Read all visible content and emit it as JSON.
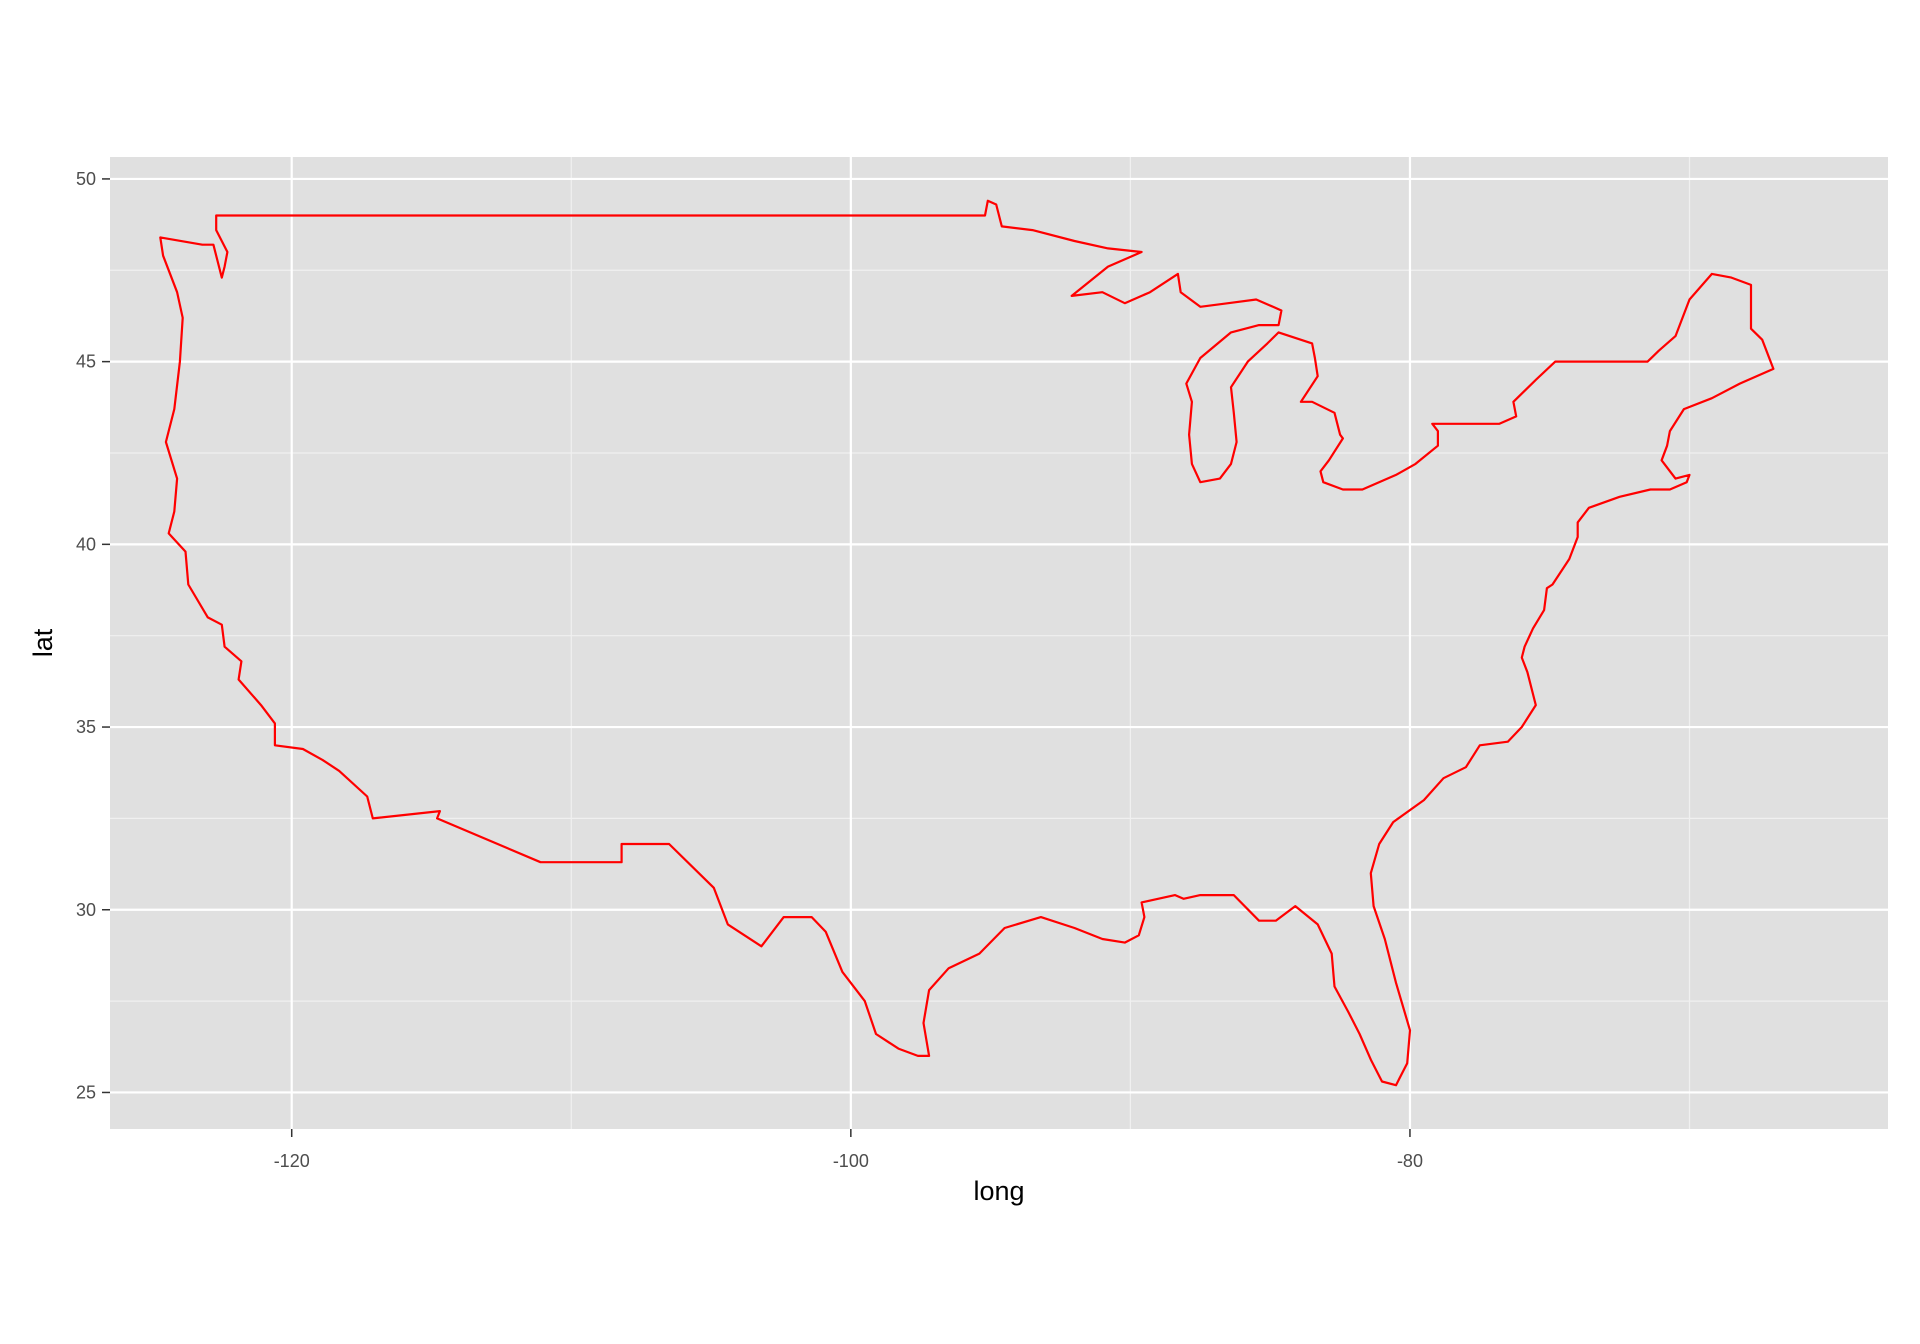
{
  "chart_data": {
    "type": "line",
    "title": "",
    "xlabel": "long",
    "ylabel": "lat",
    "xlim": [
      -126.5,
      -62.9
    ],
    "ylim": [
      24.0,
      50.6
    ],
    "x_ticks": [
      -120,
      -100,
      -80
    ],
    "y_ticks": [
      25,
      30,
      35,
      40,
      45,
      50
    ],
    "x_tick_labels": [
      "-120",
      "-100",
      "-80"
    ],
    "y_tick_labels": [
      "25",
      "30",
      "35",
      "40",
      "45",
      "50"
    ],
    "grid": true,
    "legend": "none",
    "colors": {
      "panel": "#e0e0e0",
      "grid_major": "#ffffff",
      "grid_minor": "#f0f0f0",
      "line": "#ff0000"
    },
    "series": [
      {
        "points": [
          [
            -122.7,
            49.0
          ],
          [
            -120.0,
            49.0
          ],
          [
            -110.0,
            49.0
          ],
          [
            -100.0,
            49.0
          ],
          [
            -95.2,
            49.0
          ],
          [
            -95.1,
            49.4
          ],
          [
            -94.8,
            49.3
          ],
          [
            -94.6,
            48.7
          ],
          [
            -93.5,
            48.6
          ],
          [
            -92.0,
            48.3
          ],
          [
            -90.8,
            48.1
          ],
          [
            -89.6,
            48.0
          ],
          [
            -90.8,
            47.6
          ],
          [
            -92.1,
            46.8
          ],
          [
            -91.0,
            46.9
          ],
          [
            -90.2,
            46.6
          ],
          [
            -89.3,
            46.9
          ],
          [
            -88.3,
            47.4
          ],
          [
            -88.2,
            46.9
          ],
          [
            -87.5,
            46.5
          ],
          [
            -86.5,
            46.6
          ],
          [
            -85.5,
            46.7
          ],
          [
            -84.9,
            46.5
          ],
          [
            -84.6,
            46.4
          ],
          [
            -84.7,
            46.0
          ],
          [
            -85.4,
            46.0
          ],
          [
            -86.4,
            45.8
          ],
          [
            -87.5,
            45.1
          ],
          [
            -88.0,
            44.4
          ],
          [
            -87.8,
            43.9
          ],
          [
            -87.9,
            43.0
          ],
          [
            -87.8,
            42.2
          ],
          [
            -87.5,
            41.7
          ],
          [
            -86.8,
            41.8
          ],
          [
            -86.4,
            42.2
          ],
          [
            -86.2,
            42.8
          ],
          [
            -86.3,
            43.6
          ],
          [
            -86.4,
            44.3
          ],
          [
            -85.8,
            45.0
          ],
          [
            -85.1,
            45.5
          ],
          [
            -84.7,
            45.8
          ],
          [
            -83.5,
            45.5
          ],
          [
            -83.4,
            45.1
          ],
          [
            -83.3,
            44.6
          ],
          [
            -83.9,
            43.9
          ],
          [
            -83.5,
            43.9
          ],
          [
            -82.7,
            43.6
          ],
          [
            -82.5,
            43.0
          ],
          [
            -82.4,
            42.9
          ],
          [
            -82.9,
            42.3
          ],
          [
            -83.2,
            42.0
          ],
          [
            -83.1,
            41.7
          ],
          [
            -82.4,
            41.5
          ],
          [
            -81.7,
            41.5
          ],
          [
            -80.5,
            41.9
          ],
          [
            -79.8,
            42.2
          ],
          [
            -79.0,
            42.7
          ],
          [
            -79.0,
            43.1
          ],
          [
            -79.2,
            43.3
          ],
          [
            -78.0,
            43.3
          ],
          [
            -76.8,
            43.3
          ],
          [
            -76.2,
            43.5
          ],
          [
            -76.3,
            43.9
          ],
          [
            -75.5,
            44.5
          ],
          [
            -74.8,
            45.0
          ],
          [
            -71.5,
            45.0
          ],
          [
            -71.1,
            45.3
          ],
          [
            -70.5,
            45.7
          ],
          [
            -70.0,
            46.7
          ],
          [
            -69.2,
            47.4
          ],
          [
            -68.5,
            47.3
          ],
          [
            -67.8,
            47.1
          ],
          [
            -67.8,
            45.9
          ],
          [
            -67.4,
            45.6
          ],
          [
            -67.0,
            44.8
          ],
          [
            -68.2,
            44.4
          ],
          [
            -69.2,
            44.0
          ],
          [
            -70.2,
            43.7
          ],
          [
            -70.7,
            43.1
          ],
          [
            -70.8,
            42.7
          ],
          [
            -71.0,
            42.3
          ],
          [
            -70.5,
            41.8
          ],
          [
            -70.0,
            41.9
          ],
          [
            -70.1,
            41.7
          ],
          [
            -70.7,
            41.5
          ],
          [
            -71.4,
            41.5
          ],
          [
            -72.5,
            41.3
          ],
          [
            -73.6,
            41.0
          ],
          [
            -74.0,
            40.6
          ],
          [
            -74.0,
            40.2
          ],
          [
            -74.3,
            39.6
          ],
          [
            -74.9,
            38.9
          ],
          [
            -75.1,
            38.8
          ],
          [
            -75.2,
            38.2
          ],
          [
            -75.6,
            37.7
          ],
          [
            -75.9,
            37.2
          ],
          [
            -76.0,
            36.9
          ],
          [
            -75.8,
            36.5
          ],
          [
            -75.5,
            35.6
          ],
          [
            -76.0,
            35.0
          ],
          [
            -76.5,
            34.6
          ],
          [
            -77.5,
            34.5
          ],
          [
            -78.0,
            33.9
          ],
          [
            -78.8,
            33.6
          ],
          [
            -79.5,
            33.0
          ],
          [
            -80.6,
            32.4
          ],
          [
            -81.1,
            31.8
          ],
          [
            -81.4,
            31.0
          ],
          [
            -81.3,
            30.1
          ],
          [
            -80.9,
            29.2
          ],
          [
            -80.5,
            28.0
          ],
          [
            -80.0,
            26.7
          ],
          [
            -80.1,
            25.8
          ],
          [
            -80.5,
            25.2
          ],
          [
            -81.0,
            25.3
          ],
          [
            -81.4,
            25.9
          ],
          [
            -81.8,
            26.6
          ],
          [
            -82.2,
            27.2
          ],
          [
            -82.7,
            27.9
          ],
          [
            -82.8,
            28.8
          ],
          [
            -83.3,
            29.6
          ],
          [
            -84.1,
            30.1
          ],
          [
            -84.8,
            29.7
          ],
          [
            -85.4,
            29.7
          ],
          [
            -86.3,
            30.4
          ],
          [
            -87.5,
            30.4
          ],
          [
            -88.1,
            30.3
          ],
          [
            -88.4,
            30.4
          ],
          [
            -89.6,
            30.2
          ],
          [
            -89.5,
            29.8
          ],
          [
            -89.7,
            29.3
          ],
          [
            -90.2,
            29.1
          ],
          [
            -91.0,
            29.2
          ],
          [
            -92.0,
            29.5
          ],
          [
            -93.2,
            29.8
          ],
          [
            -94.5,
            29.5
          ],
          [
            -95.4,
            28.8
          ],
          [
            -96.5,
            28.4
          ],
          [
            -97.2,
            27.8
          ],
          [
            -97.4,
            26.9
          ],
          [
            -97.2,
            26.0
          ],
          [
            -97.6,
            26.0
          ],
          [
            -98.3,
            26.2
          ],
          [
            -99.1,
            26.6
          ],
          [
            -99.5,
            27.5
          ],
          [
            -100.3,
            28.3
          ],
          [
            -100.9,
            29.4
          ],
          [
            -101.4,
            29.8
          ],
          [
            -102.4,
            29.8
          ],
          [
            -103.2,
            29.0
          ],
          [
            -104.4,
            29.6
          ],
          [
            -104.9,
            30.6
          ],
          [
            -106.5,
            31.8
          ],
          [
            -108.2,
            31.8
          ],
          [
            -108.2,
            31.3
          ],
          [
            -111.1,
            31.3
          ],
          [
            -114.8,
            32.5
          ],
          [
            -114.7,
            32.7
          ],
          [
            -117.1,
            32.5
          ],
          [
            -117.3,
            33.1
          ],
          [
            -118.3,
            33.8
          ],
          [
            -118.9,
            34.1
          ],
          [
            -119.6,
            34.4
          ],
          [
            -120.6,
            34.5
          ],
          [
            -120.6,
            35.1
          ],
          [
            -121.1,
            35.6
          ],
          [
            -121.9,
            36.3
          ],
          [
            -121.8,
            36.8
          ],
          [
            -122.4,
            37.2
          ],
          [
            -122.5,
            37.8
          ],
          [
            -123.0,
            38.0
          ],
          [
            -123.7,
            38.9
          ],
          [
            -123.8,
            39.8
          ],
          [
            -124.4,
            40.3
          ],
          [
            -124.2,
            40.9
          ],
          [
            -124.1,
            41.8
          ],
          [
            -124.5,
            42.8
          ],
          [
            -124.2,
            43.7
          ],
          [
            -124.0,
            45.0
          ],
          [
            -123.9,
            46.2
          ],
          [
            -124.1,
            46.9
          ],
          [
            -124.6,
            47.9
          ],
          [
            -124.7,
            48.4
          ],
          [
            -123.2,
            48.2
          ],
          [
            -122.8,
            48.2
          ],
          [
            -122.5,
            47.3
          ],
          [
            -122.4,
            47.6
          ],
          [
            -122.3,
            48.0
          ],
          [
            -122.7,
            48.6
          ],
          [
            -122.7,
            49.0
          ]
        ]
      }
    ]
  }
}
